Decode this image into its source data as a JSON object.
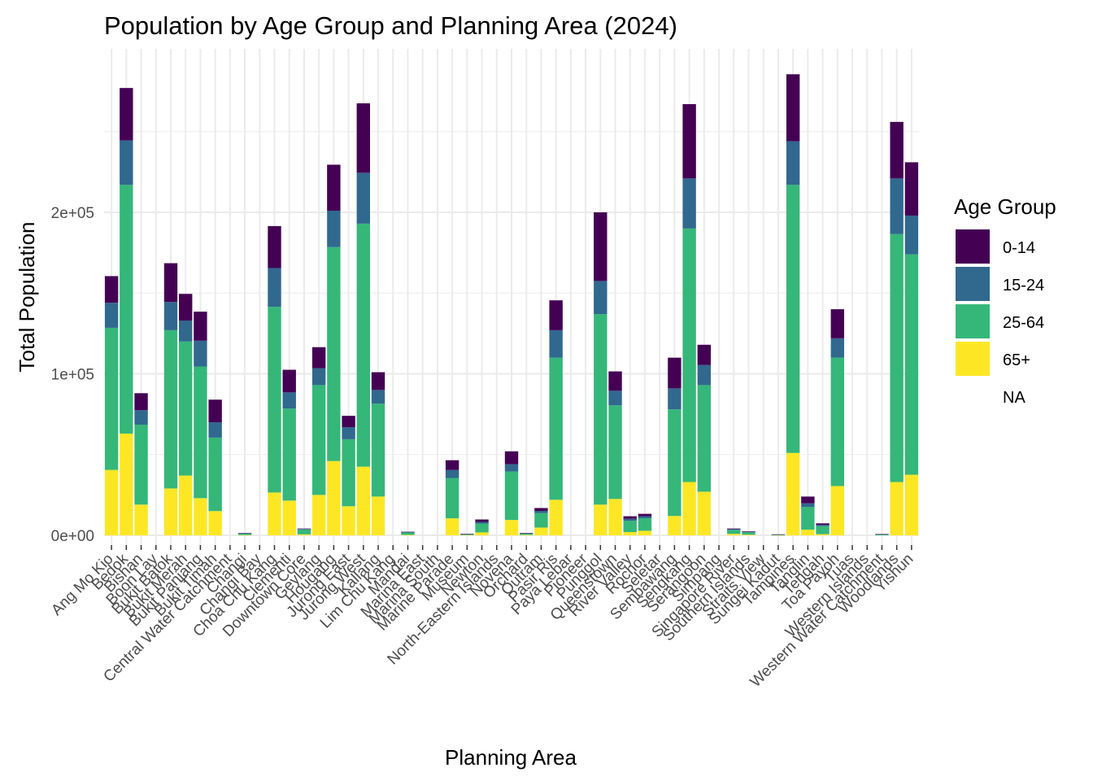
{
  "chart_data": {
    "type": "bar",
    "stacked": true,
    "title": "Population by Age Group and Planning Area (2024)",
    "xlabel": "Planning Area",
    "ylabel": "Total Population",
    "ylim": [
      0,
      290000
    ],
    "y_ticks": [
      {
        "value": 0,
        "label": "0e+00"
      },
      {
        "value": 100000,
        "label": "1e+05"
      },
      {
        "value": 200000,
        "label": "2e+05"
      }
    ],
    "grid": true,
    "legend_title": "Age Group",
    "legend_position": "right",
    "categories": [
      "Ang Mo Kio",
      "Bedok",
      "Bishan",
      "Boon Lay",
      "Bukit Batok",
      "Bukit Merah",
      "Bukit Panjang",
      "Bukit Timah",
      "Central Water Catchment",
      "Changi",
      "Changi Bay",
      "Choa Chu Kang",
      "Clementi",
      "Downtown Core",
      "Geylang",
      "Hougang",
      "Jurong East",
      "Jurong West",
      "Kallang",
      "Lim Chu Kang",
      "Mandai",
      "Marina East",
      "Marina South",
      "Marine Parade",
      "Museum",
      "Newton",
      "North-Eastern Islands",
      "Novena",
      "Orchard",
      "Outram",
      "Pasir Ris",
      "Paya Lebar",
      "Pioneer",
      "Punggol",
      "Queenstown",
      "River Valley",
      "Rochor",
      "Seletar",
      "Sembawang",
      "Sengkang",
      "Serangoon",
      "Simpang",
      "Singapore River",
      "Southern Islands",
      "Straits View",
      "Sungei Kadut",
      "Tampines",
      "Tanglin",
      "Tengah",
      "Toa Payoh",
      "Tuas",
      "Western Islands",
      "Western Water Catchment",
      "Woodlands",
      "Yishun"
    ],
    "series": [
      {
        "name": "65+",
        "color": "#FDE725",
        "values": [
          40500,
          63000,
          19000,
          0,
          29000,
          37000,
          23000,
          15000,
          0,
          200,
          0,
          26500,
          21500,
          600,
          25000,
          46000,
          18000,
          42500,
          24000,
          0,
          300,
          0,
          0,
          10500,
          200,
          1800,
          0,
          9500,
          300,
          4800,
          22000,
          0,
          0,
          19000,
          22500,
          2000,
          2800,
          0,
          12000,
          33000,
          27000,
          0,
          900,
          400,
          0,
          100,
          51000,
          3500,
          700,
          30500,
          0,
          0,
          0,
          33000,
          37500
        ]
      },
      {
        "name": "25-64",
        "color": "#35B779",
        "values": [
          88000,
          154000,
          49500,
          0,
          98000,
          83000,
          81500,
          45500,
          0,
          900,
          0,
          115000,
          57000,
          3000,
          68000,
          132500,
          41500,
          150500,
          57500,
          0,
          1600,
          0,
          0,
          25000,
          500,
          5500,
          0,
          30000,
          900,
          9000,
          88000,
          0,
          0,
          118000,
          58000,
          7000,
          7800,
          0,
          66000,
          157000,
          66000,
          0,
          2500,
          1500,
          0,
          400,
          166000,
          14000,
          5000,
          79500,
          0,
          0,
          600,
          153500,
          136500
        ]
      },
      {
        "name": "15-24",
        "color": "#31688E",
        "values": [
          15500,
          27500,
          9000,
          0,
          17500,
          13000,
          16000,
          9500,
          0,
          150,
          0,
          24000,
          10000,
          300,
          10500,
          22500,
          7500,
          31500,
          8500,
          0,
          150,
          0,
          0,
          5000,
          100,
          1000,
          0,
          4500,
          100,
          1300,
          17000,
          0,
          0,
          20500,
          9000,
          1200,
          1200,
          0,
          13000,
          31000,
          12500,
          0,
          400,
          300,
          0,
          50,
          27000,
          2300,
          700,
          12000,
          0,
          0,
          100,
          34500,
          24000
        ]
      },
      {
        "name": "0-14",
        "color": "#440154",
        "values": [
          16500,
          32500,
          10500,
          0,
          24000,
          16500,
          18000,
          14000,
          0,
          150,
          0,
          26000,
          14000,
          300,
          13000,
          28500,
          7000,
          43000,
          11000,
          0,
          150,
          0,
          0,
          6000,
          100,
          1500,
          0,
          8000,
          100,
          1800,
          18500,
          0,
          0,
          42500,
          12000,
          1600,
          1500,
          0,
          19000,
          46000,
          12500,
          0,
          400,
          300,
          0,
          50,
          41500,
          4200,
          1000,
          18000,
          0,
          0,
          100,
          35000,
          33000
        ]
      }
    ],
    "legend_entries": [
      "0-14",
      "15-24",
      "25-64",
      "65+",
      "NA"
    ],
    "legend_colors": [
      "#440154",
      "#31688E",
      "#35B779",
      "#FDE725",
      ""
    ]
  }
}
